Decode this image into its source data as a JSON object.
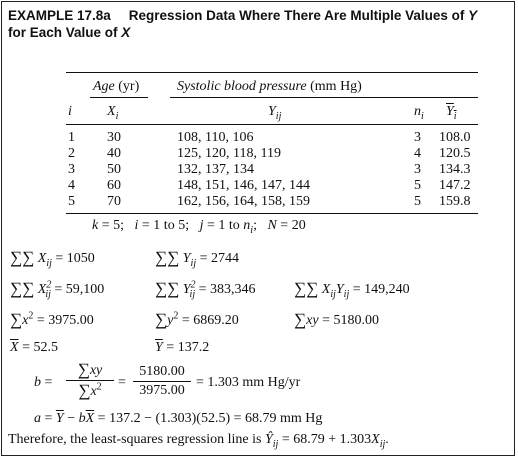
{
  "caption": {
    "label": "EXAMPLE 17.8a",
    "title_line1": "Regression Data Where There Are Multiple Values of",
    "title_var1": "Y",
    "title_line2": "for Each Value of",
    "title_var2": "X"
  },
  "table": {
    "group_headers": {
      "age": "Age",
      "age_unit": "(yr)",
      "sbp": "Systolic blood pressure",
      "sbp_unit": "(mm Hg)"
    },
    "headers": {
      "i": "i",
      "x": "X",
      "x_sub": "i",
      "y": "Y",
      "y_sub": "ij",
      "n": "n",
      "n_sub": "i",
      "ybar": "Y",
      "ybar_sub": "i"
    },
    "rows": [
      {
        "i": "1",
        "x": "30",
        "y": "108, 110, 106",
        "n": "3",
        "ybar": "108.0"
      },
      {
        "i": "2",
        "x": "40",
        "y": "125, 120, 118, 119",
        "n": "4",
        "ybar": "120.5"
      },
      {
        "i": "3",
        "x": "50",
        "y": "132, 137, 134",
        "n": "3",
        "ybar": "134.3"
      },
      {
        "i": "4",
        "x": "60",
        "y": "148, 151, 146, 147, 144",
        "n": "5",
        "ybar": "147.2"
      },
      {
        "i": "5",
        "x": "70",
        "y": "162, 156, 164, 158, 159",
        "n": "5",
        "ybar": "159.8"
      }
    ],
    "footnote": {
      "k": "k",
      "k_val": "= 5;",
      "i": "i",
      "i_val": "= 1 to 5;",
      "j": "j",
      "j_val": "= 1 to",
      "n": "n",
      "n_sub": "i",
      "n_end": ";",
      "N": "N",
      "N_val": "= 20"
    }
  },
  "calc": {
    "sum_x": "= 1050",
    "sum_y": "= 2744",
    "sum_x2": "= 59,100",
    "sum_y2": "= 383,346",
    "sum_xy_raw": "= 149,240",
    "ss_x2": "= 3975.00",
    "ss_y2": "= 6869.20",
    "ss_xy": "= 5180.00",
    "xbar": "= 52.5",
    "ybar": "= 137.2",
    "b_label": "b =",
    "b_num": "5180.00",
    "b_den": "3975.00",
    "b_result": "= 1.303 mm Hg/yr",
    "a_line_text": "= 137.2  −  (1.303)(52.5) = 68.79 mm Hg",
    "therefore": "Therefore, the least-squares regression line is",
    "eq_rhs": "= 68.79  +  1.303"
  }
}
